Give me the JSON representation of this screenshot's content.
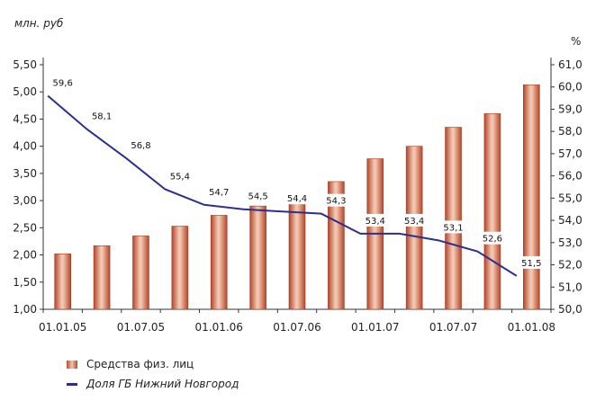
{
  "chart_data": {
    "type": "bar+line",
    "left_axis_unit": "млн. руб",
    "right_axis_unit": "%",
    "left_ticks": [
      "1,00",
      "1,50",
      "2,00",
      "2,50",
      "3,00",
      "3,50",
      "4,00",
      "4,50",
      "5,00",
      "5,50"
    ],
    "right_ticks": [
      "50,0",
      "51,0",
      "52,0",
      "53,0",
      "54,0",
      "55,0",
      "56,0",
      "57,0",
      "58,0",
      "59,0",
      "60,0",
      "61,0"
    ],
    "ylim_left": [
      1.0,
      5.5
    ],
    "ylim_right": [
      50.0,
      61.0
    ],
    "x_tick_labels": [
      "01.01.05",
      "01.07.05",
      "01.01.06",
      "01.07.06",
      "01.01.07",
      "01.07.07",
      "01.01.08"
    ],
    "grid": false,
    "legend_position": "bottom-left",
    "colors": {
      "bar": "#c0552f",
      "bar_highlight": "#f3cbb6",
      "line": "#2e2f8c"
    },
    "series": [
      {
        "name": "Средства физ. лиц",
        "kind": "bar",
        "axis": "left",
        "values": [
          2.02,
          2.17,
          2.35,
          2.53,
          2.73,
          2.9,
          3.15,
          3.35,
          3.77,
          4.0,
          4.35,
          4.6,
          5.13
        ]
      },
      {
        "name": "Доля ГБ Нижний Новгород",
        "kind": "line",
        "axis": "right",
        "values": [
          59.6,
          58.1,
          56.8,
          55.4,
          54.7,
          54.5,
          54.4,
          54.3,
          53.4,
          53.4,
          53.1,
          52.6,
          51.5
        ],
        "labels": [
          "59,6",
          "58,1",
          "56,8",
          "55,4",
          "54,7",
          "54,5",
          "54,4",
          "54,3",
          "53,4",
          "53,4",
          "53,1",
          "52,6",
          "51,5"
        ]
      }
    ]
  },
  "legend": {
    "bar_label": "Средства физ. лиц",
    "line_label": "Доля ГБ Нижний Новгород"
  }
}
